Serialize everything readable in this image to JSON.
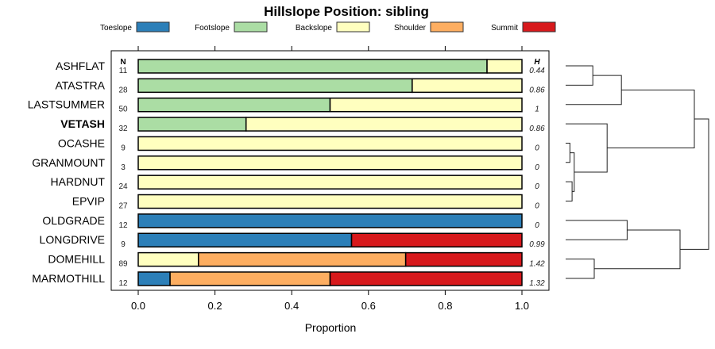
{
  "chart_data": {
    "type": "bar",
    "orientation": "horizontal-stacked",
    "title": "Hillslope Position: sibling",
    "xlabel": "Proportion",
    "xlim": [
      0,
      1
    ],
    "xticks": [
      "0.0",
      "0.2",
      "0.4",
      "0.6",
      "0.8",
      "1.0"
    ],
    "n_header": "N",
    "h_header": "H",
    "legend_position": "top",
    "legend": [
      {
        "name": "Toeslope",
        "color": "#2C7FB8"
      },
      {
        "name": "Footslope",
        "color": "#ABDDA4"
      },
      {
        "name": "Backslope",
        "color": "#FFFFBF"
      },
      {
        "name": "Shoulder",
        "color": "#FDAE61"
      },
      {
        "name": "Summit",
        "color": "#D7191C"
      }
    ],
    "categories": [
      "ASHFLAT",
      "ATASTRA",
      "LASTSUMMER",
      "VETASH",
      "OCASHE",
      "GRANMOUNT",
      "HARDNUT",
      "EPVIP",
      "OLDGRADE",
      "LONGDRIVE",
      "DOMEHILL",
      "MARMOTHILL"
    ],
    "highlighted": "VETASH",
    "n": [
      "11",
      "28",
      "50",
      "32",
      "9",
      "3",
      "24",
      "27",
      "12",
      "9",
      "89",
      "12"
    ],
    "h": [
      "0.44",
      "0.86",
      "1",
      "0.86",
      "0",
      "0",
      "0",
      "0",
      "0",
      "0.99",
      "1.42",
      "1.32"
    ],
    "series": [
      {
        "name": "Toeslope",
        "values": [
          0,
          0,
          0,
          0,
          0,
          0,
          0,
          0,
          1,
          0.556,
          0,
          0.083
        ]
      },
      {
        "name": "Footslope",
        "values": [
          0.909,
          0.714,
          0.5,
          0.281,
          0,
          0,
          0,
          0,
          0,
          0,
          0,
          0
        ]
      },
      {
        "name": "Backslope",
        "values": [
          0.091,
          0.286,
          0.5,
          0.719,
          1,
          1,
          1,
          1,
          0,
          0,
          0.157,
          0
        ]
      },
      {
        "name": "Shoulder",
        "values": [
          0,
          0,
          0,
          0,
          0,
          0,
          0,
          0,
          0,
          0,
          0.54,
          0.417
        ]
      },
      {
        "name": "Summit",
        "values": [
          0,
          0,
          0,
          0,
          0,
          0,
          0,
          0,
          0,
          0.444,
          0.303,
          0.5
        ]
      }
    ],
    "dendrogram": {
      "merges": [
        {
          "a": "ASHFLAT",
          "b": "ATASTRA",
          "height": 0.19,
          "id": "m1"
        },
        {
          "a": "m1",
          "b": "LASTSUMMER",
          "height": 0.39,
          "id": "m2"
        },
        {
          "a": "OCASHE",
          "b": "GRANMOUNT",
          "height": 0.03,
          "id": "m3"
        },
        {
          "a": "HARDNUT",
          "b": "EPVIP",
          "height": 0.045,
          "id": "m4"
        },
        {
          "a": "m3",
          "b": "m4",
          "height": 0.06,
          "id": "m5"
        },
        {
          "a": "VETASH",
          "b": "m5",
          "height": 0.29,
          "id": "m6"
        },
        {
          "a": "m2",
          "b": "m6",
          "height": 0.9,
          "id": "m7"
        },
        {
          "a": "OLDGRADE",
          "b": "LONGDRIVE",
          "height": 0.43,
          "id": "m8"
        },
        {
          "a": "DOMEHILL",
          "b": "MARMOTHILL",
          "height": 0.2,
          "id": "m9"
        },
        {
          "a": "m8",
          "b": "m9",
          "height": 0.8,
          "id": "m10"
        },
        {
          "a": "m7",
          "b": "m10",
          "height": 1.0,
          "id": "m11"
        }
      ]
    }
  }
}
